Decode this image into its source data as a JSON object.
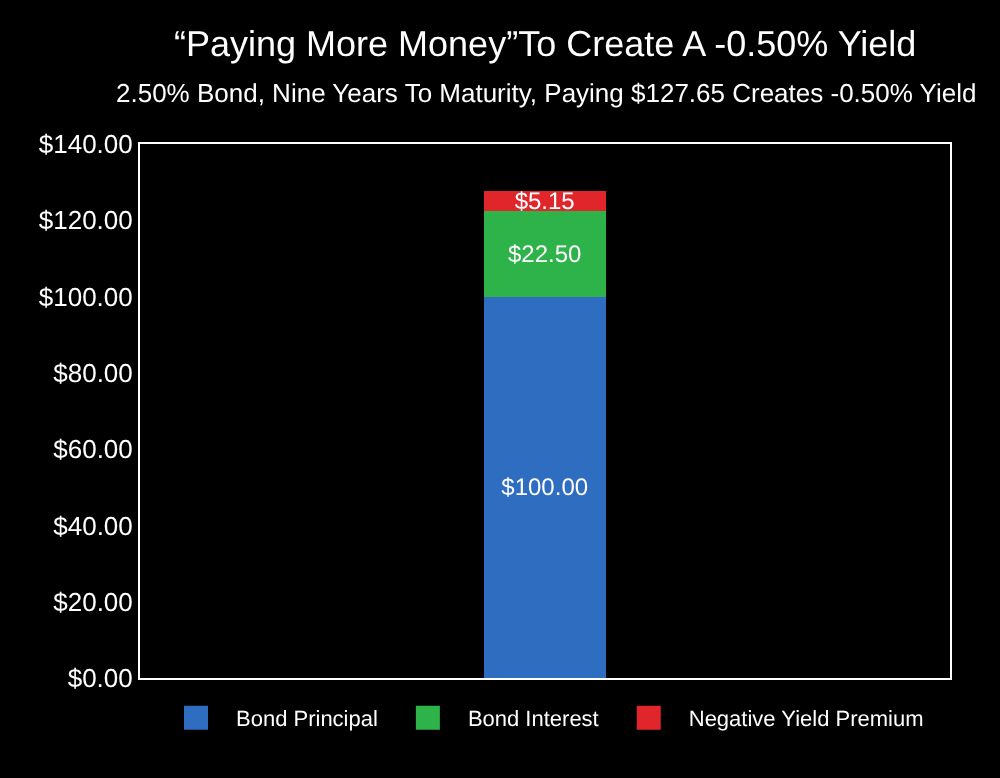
{
  "chart_data": {
    "type": "bar",
    "stacked": true,
    "title": "“Paying More Money”To Create A -0.50% Yield",
    "subtitle": "2.50% Bond, Nine Years To Maturity, Paying $127.65 Creates -0.50% Yield",
    "categories": [
      null
    ],
    "series": [
      {
        "name": "Bond Principal",
        "color": "#2f6dc0",
        "values": [
          100.0
        ],
        "value_labels": [
          "$100.00"
        ]
      },
      {
        "name": "Bond Interest",
        "color": "#2db34a",
        "values": [
          22.5
        ],
        "value_labels": [
          "$22.50"
        ]
      },
      {
        "name": "Negative Yield Premium",
        "color": "#e0262b",
        "values": [
          5.15
        ],
        "value_labels": [
          "$5.15"
        ]
      }
    ],
    "ylim": [
      0,
      140
    ],
    "yticks": [
      {
        "value": 0,
        "label": "$0.00"
      },
      {
        "value": 20,
        "label": "$20.00"
      },
      {
        "value": 40,
        "label": "$40.00"
      },
      {
        "value": 60,
        "label": "$60.00"
      },
      {
        "value": 80,
        "label": "$80.00"
      },
      {
        "value": 100,
        "label": "$100.00"
      },
      {
        "value": 120,
        "label": "$120.00"
      },
      {
        "value": 140,
        "label": "$140.00"
      }
    ],
    "grid": false,
    "legend": "bottom"
  }
}
